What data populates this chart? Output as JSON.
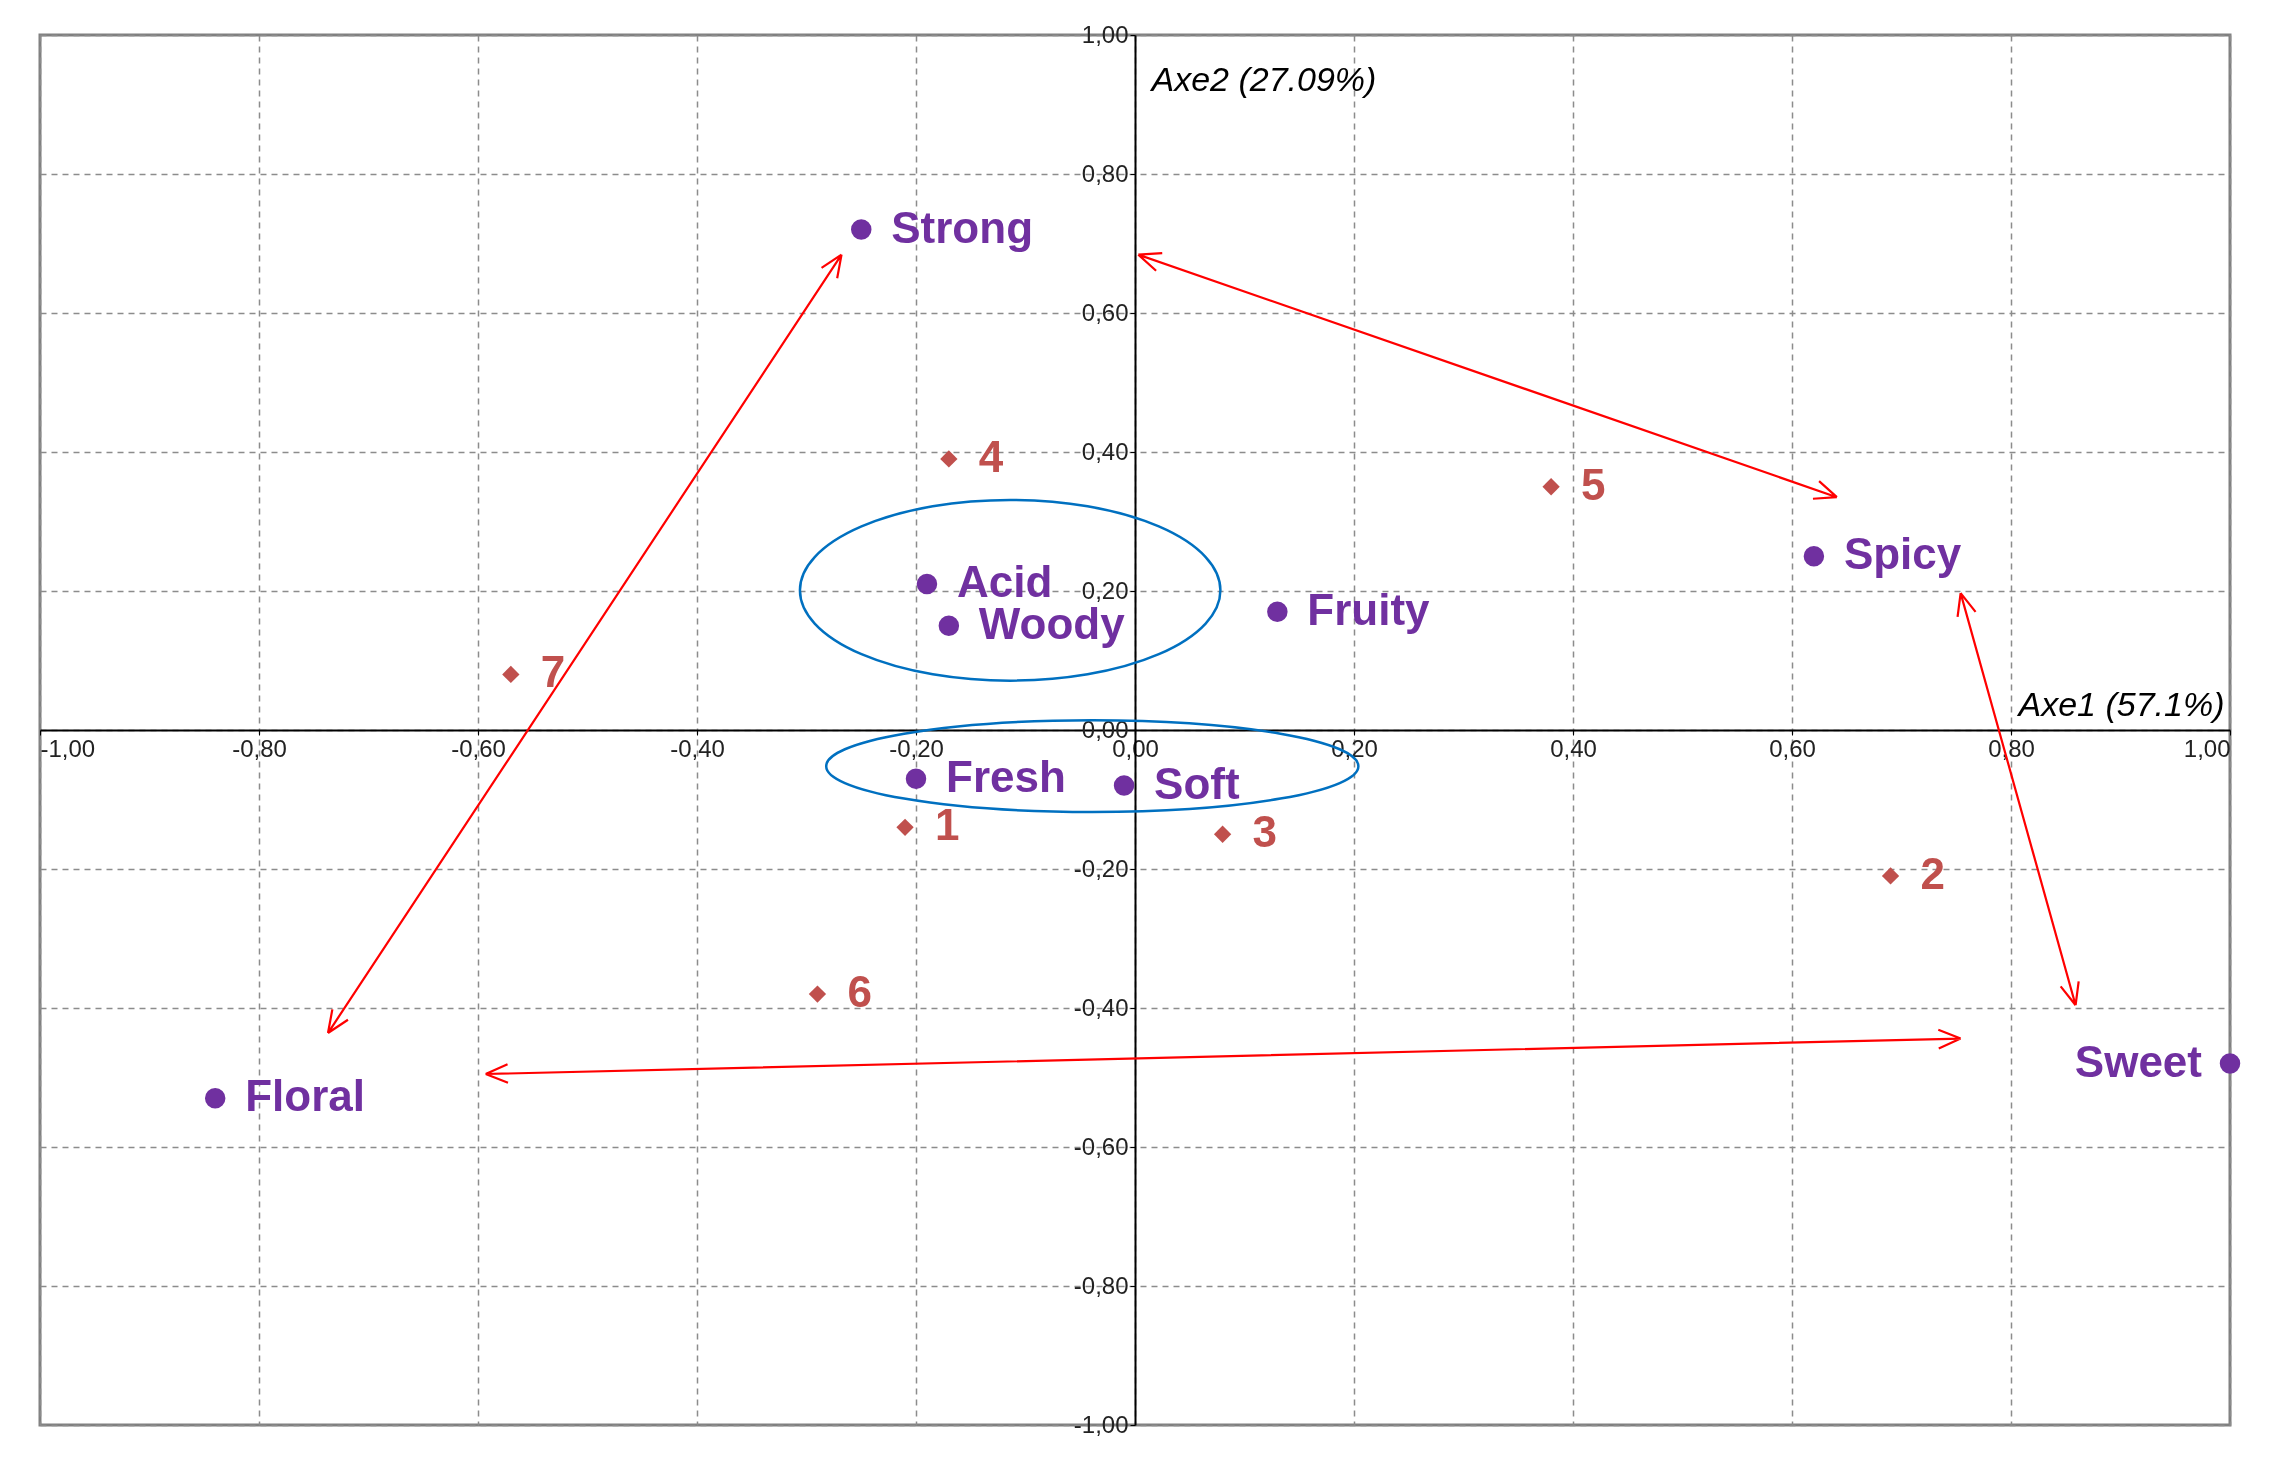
{
  "chart_data": {
    "type": "scatter",
    "xlabel": "Axe1 (57.1%)",
    "ylabel": "Axe2 (27.09%)",
    "xlim": [
      -1,
      1
    ],
    "ylim": [
      -1,
      1
    ],
    "xticks": [
      {
        "value": -1,
        "label": "-1,00"
      },
      {
        "value": -0.8,
        "label": "-0,80"
      },
      {
        "value": -0.6,
        "label": "-0,60"
      },
      {
        "value": -0.4,
        "label": "-0,40"
      },
      {
        "value": -0.2,
        "label": "-0,20"
      },
      {
        "value": 0,
        "label": "0,00"
      },
      {
        "value": 0.2,
        "label": "0,20"
      },
      {
        "value": 0.4,
        "label": "0,40"
      },
      {
        "value": 0.6,
        "label": "0,60"
      },
      {
        "value": 0.8,
        "label": "0,80"
      },
      {
        "value": 1,
        "label": "1,00"
      }
    ],
    "yticks": [
      {
        "value": -1,
        "label": "-1,00"
      },
      {
        "value": -0.8,
        "label": "-0,80"
      },
      {
        "value": -0.6,
        "label": "-0,60"
      },
      {
        "value": -0.4,
        "label": "-0,40"
      },
      {
        "value": -0.2,
        "label": "-0,20"
      },
      {
        "value": 0,
        "label": "0,00"
      },
      {
        "value": 0.2,
        "label": "0,20"
      },
      {
        "value": 0.4,
        "label": "0,40"
      },
      {
        "value": 0.6,
        "label": "0,60"
      },
      {
        "value": 0.8,
        "label": "0,80"
      },
      {
        "value": 1,
        "label": "1,00"
      }
    ],
    "grid": true,
    "series": [
      {
        "color": "#7030a0",
        "marker": "circle",
        "x": [
          -0.25,
          0.62,
          -0.19,
          -0.17,
          0.13,
          -0.2,
          -0.01,
          -0.84,
          1.0
        ],
        "values": [
          0.72,
          0.25,
          0.21,
          0.15,
          0.17,
          -0.07,
          -0.08,
          -0.53,
          -0.48
        ]
      },
      {
        "color": "#c0504d",
        "marker": "diamond",
        "x": [
          -0.17,
          0.38,
          -0.57,
          -0.21,
          0.08,
          0.69,
          -0.29
        ],
        "values": [
          0.39,
          0.35,
          0.08,
          -0.14,
          -0.15,
          -0.21,
          -0.38
        ]
      }
    ],
    "annotations": [
      {
        "text": "Strong",
        "x": -0.25,
        "y": 0.72
      },
      {
        "text": "Spicy",
        "x": 0.62,
        "y": 0.25
      },
      {
        "text": "Acid",
        "x": -0.19,
        "y": 0.21
      },
      {
        "text": "Woody",
        "x": -0.17,
        "y": 0.15
      },
      {
        "text": "Fruity",
        "x": 0.13,
        "y": 0.17
      },
      {
        "text": "Fresh",
        "x": -0.2,
        "y": -0.07
      },
      {
        "text": "Soft",
        "x": -0.01,
        "y": -0.08
      },
      {
        "text": "Floral",
        "x": -0.84,
        "y": -0.53
      },
      {
        "text": "Sweet",
        "x": 1.0,
        "y": -0.48
      },
      {
        "text": "4",
        "x": -0.17,
        "y": 0.39
      },
      {
        "text": "5",
        "x": 0.38,
        "y": 0.35
      },
      {
        "text": "7",
        "x": -0.57,
        "y": 0.08
      },
      {
        "text": "1",
        "x": -0.21,
        "y": -0.14
      },
      {
        "text": "3",
        "x": 0.08,
        "y": -0.15
      },
      {
        "text": "2",
        "x": 0.69,
        "y": -0.21
      },
      {
        "text": "6",
        "x": -0.29,
        "y": -0.38
      }
    ]
  }
}
